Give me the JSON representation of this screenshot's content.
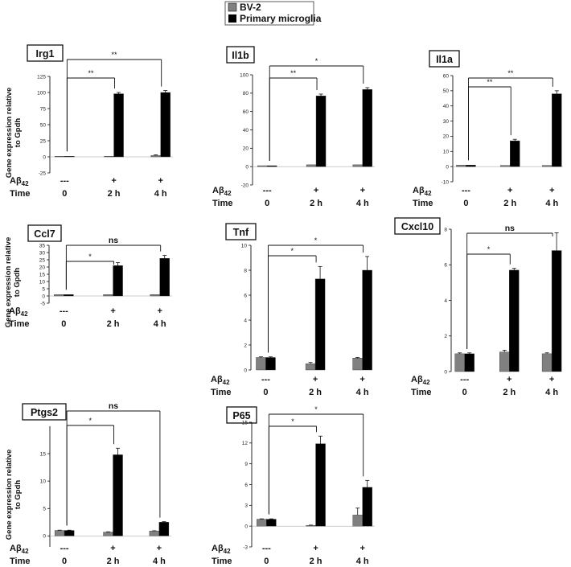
{
  "legend": {
    "series": [
      {
        "name": "BV-2",
        "color": "#808080"
      },
      {
        "name": "Primary microglia",
        "color": "#000000"
      }
    ]
  },
  "row_labels": {
    "treatment_prefix": "Aβ",
    "treatment_sub": "42",
    "time": "Time",
    "treatment_values": [
      "---",
      "+",
      "+"
    ],
    "time_values": [
      "0",
      "2 h",
      "4 h"
    ]
  },
  "chart_data": [
    {
      "type": "bar",
      "title": "Irg1",
      "ylabel": "Gene expression relative to Gpdh",
      "categories": [
        "0",
        "2 h",
        "4 h"
      ],
      "series": [
        {
          "name": "BV-2",
          "values": [
            1,
            1,
            2
          ],
          "errors": [
            0,
            0,
            1
          ]
        },
        {
          "name": "Primary microglia",
          "values": [
            1,
            98,
            100
          ],
          "errors": [
            0,
            2,
            3
          ]
        }
      ],
      "ylim": [
        -25,
        125
      ],
      "yticks": [
        "-25",
        "0",
        "25",
        "50",
        "75",
        "100",
        "125"
      ],
      "significance": [
        {
          "label": "**",
          "to": "2 h"
        },
        {
          "label": "**",
          "to": "4 h"
        }
      ]
    },
    {
      "type": "bar",
      "title": "Il1b",
      "ylabel": "",
      "categories": [
        "0",
        "2 h",
        "4 h"
      ],
      "series": [
        {
          "name": "BV-2",
          "values": [
            1,
            2,
            2
          ],
          "errors": [
            0,
            0,
            0
          ]
        },
        {
          "name": "Primary microglia",
          "values": [
            1,
            77,
            84
          ],
          "errors": [
            0,
            2,
            2
          ]
        }
      ],
      "ylim": [
        -20,
        100
      ],
      "yticks": [
        "-20",
        "0",
        "20",
        "40",
        "60",
        "80",
        "100"
      ],
      "significance": [
        {
          "label": "**",
          "to": "2 h"
        },
        {
          "label": "*",
          "to": "4 h"
        }
      ]
    },
    {
      "type": "bar",
      "title": "Il1a",
      "ylabel": "",
      "categories": [
        "0",
        "2 h",
        "4 h"
      ],
      "series": [
        {
          "name": "BV-2",
          "values": [
            1,
            0.8,
            0.8
          ],
          "errors": [
            0,
            0,
            0
          ]
        },
        {
          "name": "Primary microglia",
          "values": [
            1,
            17,
            48
          ],
          "errors": [
            0,
            1,
            2
          ]
        }
      ],
      "ylim": [
        -10,
        60
      ],
      "yticks": [
        "-10",
        "0",
        "10",
        "20",
        "30",
        "40",
        "50",
        "60"
      ],
      "significance": [
        {
          "label": "**",
          "to": "2 h"
        },
        {
          "label": "**",
          "to": "4 h"
        }
      ]
    },
    {
      "type": "bar",
      "title": "Ccl7",
      "ylabel": "Gene expression relative to Gpdh",
      "categories": [
        "0",
        "2 h",
        "4 h"
      ],
      "series": [
        {
          "name": "BV-2",
          "values": [
            1,
            1,
            1
          ],
          "errors": [
            0,
            0,
            0
          ]
        },
        {
          "name": "Primary microglia",
          "values": [
            1,
            21,
            26
          ],
          "errors": [
            0,
            2,
            2
          ]
        }
      ],
      "ylim": [
        -5,
        35
      ],
      "yticks": [
        "-5",
        "0",
        "5",
        "10",
        "15",
        "20",
        "25",
        "30",
        "35"
      ],
      "significance": [
        {
          "label": "*",
          "to": "2 h"
        },
        {
          "label": "ns",
          "to": "4 h"
        }
      ]
    },
    {
      "type": "bar",
      "title": "Tnf",
      "ylabel": "",
      "categories": [
        "0",
        "2 h",
        "4 h"
      ],
      "series": [
        {
          "name": "BV-2",
          "values": [
            1.0,
            0.5,
            0.95
          ],
          "errors": [
            0.05,
            0.1,
            0.05
          ]
        },
        {
          "name": "Primary microglia",
          "values": [
            1.0,
            7.3,
            8.0
          ],
          "errors": [
            0.05,
            1.0,
            1.1
          ]
        }
      ],
      "ylim": [
        0,
        10
      ],
      "yticks": [
        "0",
        "2",
        "4",
        "6",
        "8",
        "10"
      ],
      "significance": [
        {
          "label": "*",
          "to": "2 h"
        },
        {
          "label": "*",
          "to": "4 h"
        }
      ]
    },
    {
      "type": "bar",
      "title": "Cxcl10",
      "ylabel": "",
      "categories": [
        "0",
        "2 h",
        "4 h"
      ],
      "series": [
        {
          "name": "BV-2",
          "values": [
            1.0,
            1.1,
            1.0
          ],
          "errors": [
            0.05,
            0.1,
            0.05
          ]
        },
        {
          "name": "Primary microglia",
          "values": [
            1.0,
            5.7,
            6.8
          ],
          "errors": [
            0.05,
            0.1,
            1.0
          ]
        }
      ],
      "ylim": [
        0,
        8
      ],
      "yticks": [
        "0",
        "2",
        "4",
        "6",
        "8"
      ],
      "significance": [
        {
          "label": "*",
          "to": "2 h"
        },
        {
          "label": "ns",
          "to": "4 h"
        }
      ]
    },
    {
      "type": "bar",
      "title": "Ptgs2",
      "ylabel": "Gene expression relative to Gpdh",
      "categories": [
        "0",
        "2 h",
        "4 h"
      ],
      "series": [
        {
          "name": "BV-2",
          "values": [
            1.0,
            0.7,
            0.9
          ],
          "errors": [
            0.05,
            0.05,
            0.05
          ]
        },
        {
          "name": "Primary microglia",
          "values": [
            1.0,
            14.8,
            2.5
          ],
          "errors": [
            0.05,
            1.2,
            0.1
          ]
        }
      ],
      "ylim": [
        -2,
        20
      ],
      "yticks": [
        "0",
        "5",
        "10",
        "15"
      ],
      "significance": [
        {
          "label": "*",
          "to": "2 h"
        },
        {
          "label": "ns",
          "to": "4 h"
        }
      ]
    },
    {
      "type": "bar",
      "title": "P65",
      "ylabel": "",
      "categories": [
        "0",
        "2 h",
        "4 h"
      ],
      "series": [
        {
          "name": "BV-2",
          "values": [
            1.0,
            0.1,
            1.6
          ],
          "errors": [
            0.05,
            0.05,
            1.0
          ]
        },
        {
          "name": "Primary microglia",
          "values": [
            1.0,
            11.9,
            5.6
          ],
          "errors": [
            0.05,
            1.1,
            1.0
          ]
        }
      ],
      "ylim": [
        -3,
        15
      ],
      "yticks": [
        "-3",
        "0",
        "3",
        "6",
        "9",
        "12",
        "15"
      ],
      "significance": [
        {
          "label": "*",
          "to": "2 h"
        },
        {
          "label": "*",
          "to": "4 h"
        }
      ]
    }
  ]
}
